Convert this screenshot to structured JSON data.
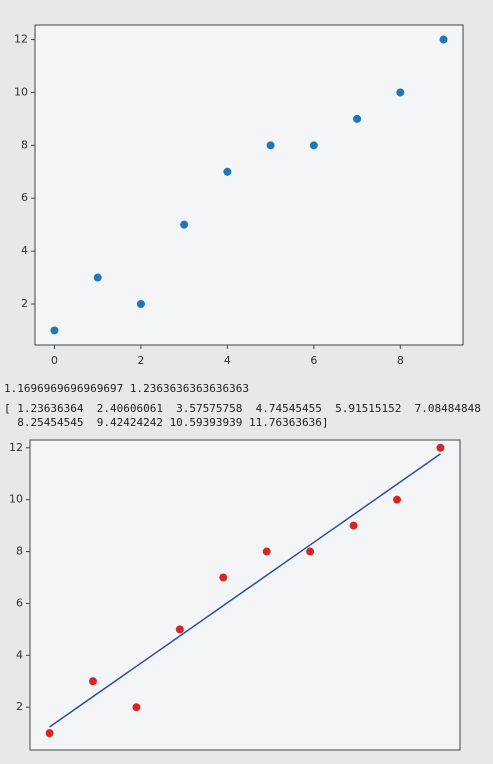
{
  "chart_data": [
    {
      "type": "scatter",
      "x": [
        0,
        1,
        2,
        3,
        4,
        5,
        6,
        7,
        8,
        9
      ],
      "series": [
        {
          "type": "scatter",
          "color": "#1f77b4",
          "values": [
            1,
            3,
            2,
            5,
            7,
            8,
            8,
            9,
            10,
            12
          ]
        }
      ],
      "xlim": [
        -0.45,
        9.45
      ],
      "xticks": [
        0,
        2,
        4,
        6,
        8
      ],
      "ylim": [
        0.45,
        12.55
      ],
      "yticks": [
        2,
        4,
        6,
        8,
        10,
        12
      ]
    },
    {
      "type": "scatter",
      "x": [
        0,
        1,
        2,
        3,
        4,
        5,
        6,
        7,
        8,
        9
      ],
      "series": [
        {
          "type": "scatter",
          "color": "#d62728",
          "values": [
            1,
            3,
            2,
            5,
            7,
            8,
            8,
            9,
            10,
            12
          ]
        },
        {
          "type": "line",
          "color": "#2a4fa8",
          "values": [
            1.23636364,
            2.40606061,
            3.57575758,
            4.74545455,
            5.91515152,
            7.08484848,
            8.25454545,
            9.42424242,
            10.59393939,
            11.76363636
          ]
        }
      ],
      "xlim": [
        -0.45,
        9.45
      ],
      "ylim": [
        0.35,
        12.3
      ],
      "yticks": [
        2,
        4,
        6,
        8,
        10,
        12
      ]
    }
  ],
  "console": [
    "1.1696969696969697 1.2363636363636363",
    "[ 1.23636364  2.40606061  3.57575758  4.74545455  5.91515152  7.08484848",
    "  8.25454545  9.42424242 10.59393939 11.76363636]"
  ]
}
